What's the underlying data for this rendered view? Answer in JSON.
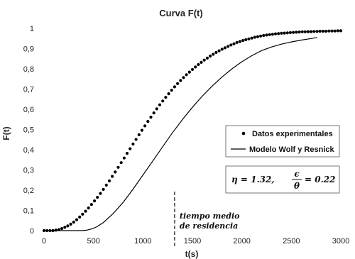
{
  "chart_data": {
    "type": "scatter",
    "title": "Curva F(t)",
    "xlabel": "t(s)",
    "ylabel": "F(t)",
    "xlim": [
      0,
      3000
    ],
    "ylim": [
      0,
      1
    ],
    "xticks": [
      0,
      500,
      1000,
      1500,
      2000,
      2500,
      3000
    ],
    "yticks": [
      0,
      0.1,
      0.2,
      0.3,
      0.4,
      0.5,
      0.6,
      0.7,
      0.8,
      0.9,
      1
    ],
    "ytick_labels": [
      "0",
      "0,1",
      "0,2",
      "0,3",
      "0,4",
      "0,5",
      "0,6",
      "0,7",
      "0,8",
      "0,9",
      "1"
    ],
    "grid": false,
    "legend_position": "center-right",
    "series": [
      {
        "name": "Datos experimentales",
        "style": "markers",
        "color": "#000000",
        "x": [
          0,
          30,
          60,
          90,
          120,
          150,
          180,
          210,
          240,
          270,
          300,
          330,
          360,
          390,
          420,
          450,
          480,
          510,
          540,
          570,
          600,
          630,
          660,
          690,
          720,
          750,
          780,
          810,
          840,
          870,
          900,
          930,
          960,
          990,
          1020,
          1050,
          1080,
          1110,
          1140,
          1170,
          1200,
          1230,
          1260,
          1290,
          1320,
          1350,
          1380,
          1410,
          1440,
          1470,
          1500,
          1530,
          1560,
          1590,
          1620,
          1650,
          1680,
          1710,
          1740,
          1770,
          1800,
          1830,
          1860,
          1890,
          1920,
          1950,
          1980,
          2010,
          2040,
          2070,
          2100,
          2130,
          2160,
          2190,
          2220,
          2250,
          2280,
          2310,
          2340,
          2370,
          2400,
          2430,
          2460,
          2490,
          2520,
          2550,
          2580,
          2610,
          2640,
          2670,
          2700,
          2730,
          2760,
          2790,
          2820,
          2850,
          2880,
          2910,
          2940,
          2970,
          3000
        ],
        "y": [
          0,
          0,
          0,
          0,
          0.002,
          0.005,
          0.01,
          0.016,
          0.023,
          0.032,
          0.042,
          0.054,
          0.067,
          0.081,
          0.096,
          0.112,
          0.129,
          0.147,
          0.165,
          0.184,
          0.204,
          0.225,
          0.246,
          0.268,
          0.29,
          0.313,
          0.336,
          0.359,
          0.382,
          0.405,
          0.428,
          0.451,
          0.474,
          0.496,
          0.518,
          0.54,
          0.561,
          0.582,
          0.602,
          0.622,
          0.641,
          0.659,
          0.677,
          0.694,
          0.711,
          0.727,
          0.742,
          0.757,
          0.771,
          0.784,
          0.797,
          0.809,
          0.821,
          0.832,
          0.843,
          0.853,
          0.863,
          0.872,
          0.881,
          0.889,
          0.897,
          0.904,
          0.911,
          0.918,
          0.924,
          0.93,
          0.935,
          0.94,
          0.944,
          0.948,
          0.952,
          0.956,
          0.959,
          0.962,
          0.965,
          0.967,
          0.969,
          0.971,
          0.973,
          0.974,
          0.976,
          0.977,
          0.978,
          0.979,
          0.98,
          0.981,
          0.982,
          0.983,
          0.983,
          0.984,
          0.984,
          0.985,
          0.985,
          0.986,
          0.986,
          0.986,
          0.987,
          0.987,
          0.987,
          0.988,
          0.988
        ]
      },
      {
        "name": "Modelo Wolf y Resnick",
        "style": "line",
        "color": "#000000",
        "x": [
          0,
          300,
          380,
          430,
          480,
          530,
          600,
          700,
          800,
          900,
          1000,
          1100,
          1200,
          1300,
          1400,
          1500,
          1600,
          1700,
          1800,
          1900,
          2000,
          2100,
          2200,
          2300,
          2400,
          2500,
          2600,
          2700,
          2760
        ],
        "y": [
          0,
          0,
          0,
          0.002,
          0.008,
          0.018,
          0.04,
          0.085,
          0.14,
          0.205,
          0.275,
          0.345,
          0.415,
          0.485,
          0.55,
          0.61,
          0.665,
          0.715,
          0.76,
          0.8,
          0.835,
          0.865,
          0.89,
          0.908,
          0.922,
          0.933,
          0.942,
          0.95,
          0.955
        ]
      }
    ],
    "annotations": [
      {
        "type": "vline",
        "x": 1320,
        "style": "dashed",
        "label_lines": [
          "tiempo medio",
          "de residencia"
        ]
      },
      {
        "type": "textbox",
        "parts": [
          "η = 1.32,",
          "ϵ",
          "θ",
          "= 0.22"
        ]
      }
    ]
  }
}
